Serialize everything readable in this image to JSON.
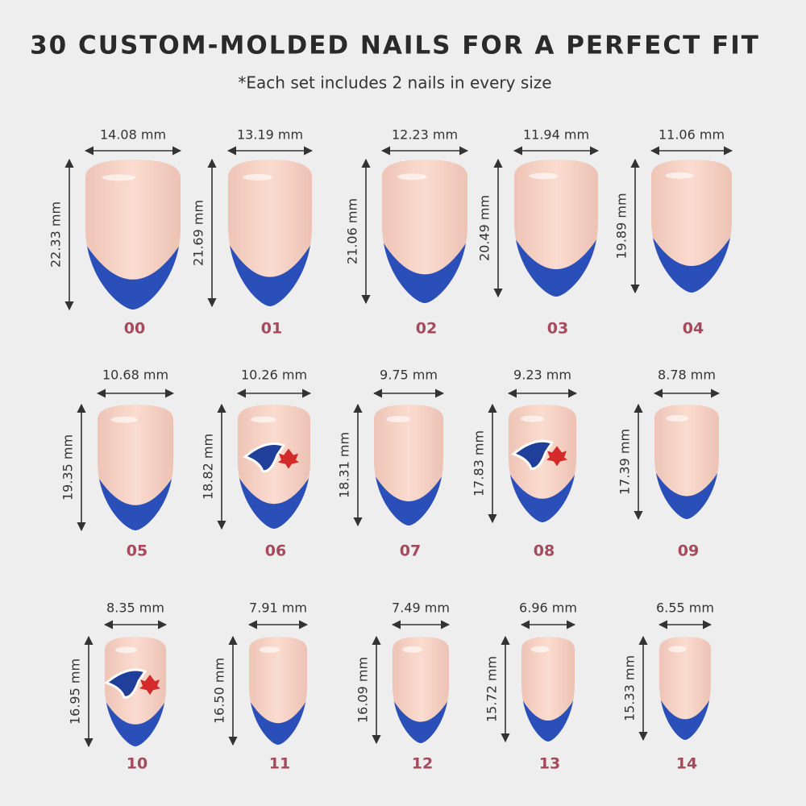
{
  "header": {
    "title": "30 CUSTOM-MOLDED NAILS FOR A PERFECT FIT",
    "subtitle": "*Each set includes 2 nails in every size"
  },
  "nails": [
    {
      "width": "14.08 mm",
      "height": "22.33 mm",
      "size": "00"
    },
    {
      "width": "13.19 mm",
      "height": "21.69 mm",
      "size": "01"
    },
    {
      "width": "12.23 mm",
      "height": "21.06 mm",
      "size": "02"
    },
    {
      "width": "11.94 mm",
      "height": "20.49 mm",
      "size": "03"
    },
    {
      "width": "11.06 mm",
      "height": "19.89 mm",
      "size": "04"
    },
    {
      "width": "10.68 mm",
      "height": "19.35 mm",
      "size": "05"
    },
    {
      "width": "10.26 mm",
      "height": "18.82 mm",
      "size": "06"
    },
    {
      "width": "9.75 mm",
      "height": "18.31 mm",
      "size": "07"
    },
    {
      "width": "9.23 mm",
      "height": "17.83 mm",
      "size": "08"
    },
    {
      "width": "8.78 mm",
      "height": "17.39 mm",
      "size": "09"
    },
    {
      "width": "8.35 mm",
      "height": "16.95 mm",
      "size": "10"
    },
    {
      "width": "7.91 mm",
      "height": "16.50 mm",
      "size": "11"
    },
    {
      "width": "7.49 mm",
      "height": "16.09 mm",
      "size": "12"
    },
    {
      "width": "6.96 mm",
      "height": "15.72 mm",
      "size": "13"
    },
    {
      "width": "6.55 mm",
      "height": "15.33 mm",
      "size": "14"
    }
  ]
}
